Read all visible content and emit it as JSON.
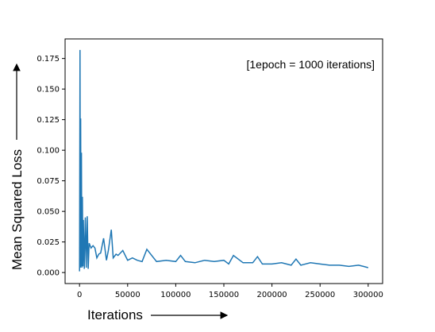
{
  "chart_data": {
    "type": "line",
    "title": "",
    "xlabel": "Iterations",
    "ylabel": "Mean Squared Loss",
    "annotation": "[1epoch = 1000 iterations]",
    "xlim": [
      -15000,
      315000
    ],
    "ylim": [
      -0.009,
      0.191
    ],
    "xticks": [
      0,
      50000,
      100000,
      150000,
      200000,
      250000,
      300000
    ],
    "xtick_labels": [
      "0",
      "50000",
      "100000",
      "150000",
      "200000",
      "250000",
      "300000"
    ],
    "yticks": [
      0.0,
      0.025,
      0.05,
      0.075,
      0.1,
      0.125,
      0.15,
      0.175
    ],
    "ytick_labels": [
      "0.000",
      "0.025",
      "0.050",
      "0.075",
      "0.100",
      "0.125",
      "0.150",
      "0.175"
    ],
    "grid": false,
    "color": "#1f77b4",
    "series": [
      {
        "x": [
          0,
          500,
          800,
          1200,
          1600,
          2000,
          2400,
          3000,
          3500,
          4000,
          5000,
          6000,
          7000,
          8000,
          9000,
          10000,
          12000,
          14000,
          16000,
          18000,
          20000,
          22000,
          25000,
          28000,
          30000,
          33000,
          35000,
          38000,
          40000,
          45000,
          50000,
          55000,
          60000,
          65000,
          70000,
          80000,
          90000,
          100000,
          105000,
          110000,
          120000,
          130000,
          140000,
          150000,
          155000,
          160000,
          170000,
          180000,
          185000,
          190000,
          200000,
          210000,
          220000,
          225000,
          230000,
          240000,
          250000,
          260000,
          270000,
          280000,
          290000,
          295000,
          300000
        ],
        "values": [
          0.001,
          0.182,
          0.004,
          0.126,
          0.005,
          0.098,
          0.004,
          0.062,
          0.005,
          0.043,
          0.003,
          0.045,
          0.004,
          0.046,
          0.003,
          0.024,
          0.02,
          0.022,
          0.02,
          0.012,
          0.015,
          0.016,
          0.028,
          0.01,
          0.018,
          0.035,
          0.012,
          0.015,
          0.014,
          0.018,
          0.01,
          0.012,
          0.01,
          0.009,
          0.019,
          0.009,
          0.01,
          0.009,
          0.014,
          0.009,
          0.008,
          0.01,
          0.009,
          0.01,
          0.007,
          0.014,
          0.008,
          0.008,
          0.013,
          0.007,
          0.007,
          0.008,
          0.006,
          0.011,
          0.006,
          0.008,
          0.007,
          0.006,
          0.006,
          0.005,
          0.006,
          0.005,
          0.004
        ]
      }
    ]
  }
}
